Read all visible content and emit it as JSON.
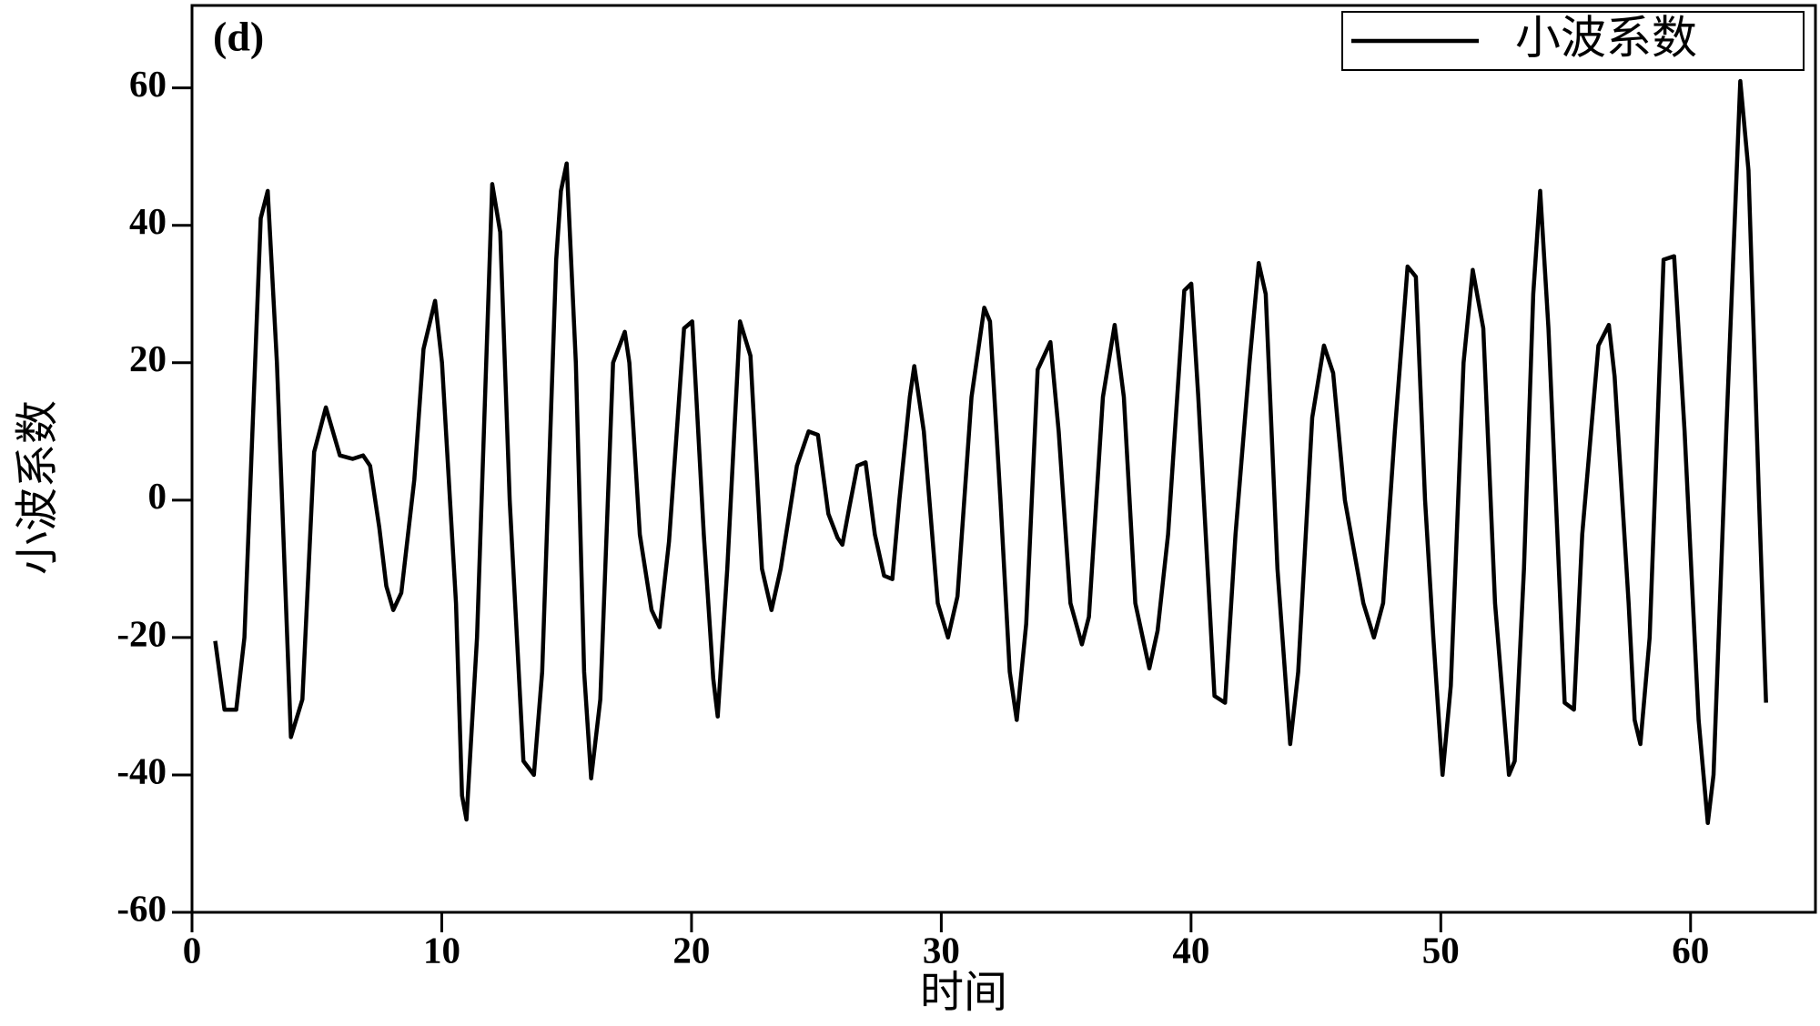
{
  "chart_data": {
    "type": "line",
    "panel_label": "(d)",
    "x_label": "时间",
    "y_label": "小波系数",
    "x": [
      0.93,
      1.3,
      1.77,
      2.1,
      2.75,
      3.03,
      3.4,
      3.96,
      4.42,
      4.89,
      5.36,
      5.92,
      6.43,
      6.85,
      7.13,
      7.5,
      7.78,
      8.06,
      8.38,
      8.9,
      9.27,
      9.73,
      10.01,
      10.57,
      10.81,
      10.99,
      11.41,
      11.78,
      12.02,
      12.34,
      12.72,
      13.27,
      13.69,
      14.02,
      14.58,
      14.77,
      15.0,
      15.37,
      15.7,
      15.98,
      16.35,
      16.86,
      17.33,
      17.51,
      17.93,
      18.4,
      18.72,
      19.1,
      19.7,
      20.03,
      20.49,
      20.87,
      21.05,
      21.43,
      21.94,
      22.36,
      22.82,
      23.2,
      23.57,
      24.22,
      24.69,
      25.06,
      25.48,
      25.85,
      26.04,
      26.32,
      26.64,
      26.97,
      27.34,
      27.71,
      28.04,
      28.32,
      28.74,
      28.92,
      29.3,
      29.86,
      30.27,
      30.65,
      31.21,
      31.72,
      31.95,
      32.37,
      32.74,
      33.02,
      33.4,
      33.86,
      34.37,
      34.7,
      35.17,
      35.63,
      35.91,
      36.47,
      36.94,
      37.31,
      37.77,
      38.33,
      38.66,
      39.08,
      39.73,
      40.01,
      40.29,
      40.94,
      41.36,
      41.78,
      42.34,
      42.71,
      42.99,
      43.46,
      43.97,
      44.29,
      44.85,
      45.32,
      45.69,
      46.16,
      46.9,
      47.32,
      47.69,
      48.16,
      48.67,
      49.0,
      49.37,
      49.7,
      50.07,
      50.4,
      50.91,
      51.28,
      51.7,
      52.17,
      52.73,
      52.96,
      53.33,
      53.7,
      53.98,
      54.31,
      54.96,
      55.33,
      55.66,
      56.31,
      56.73,
      56.96,
      57.52,
      57.76,
      57.99,
      58.36,
      58.92,
      59.34,
      59.76,
      60.32,
      60.69,
      60.92,
      61.43,
      61.76,
      61.99,
      62.32,
      62.74,
      63.02
    ],
    "series": [
      {
        "name": "小波系数",
        "color": "#000000",
        "values": [
          -20.5,
          -30.5,
          -30.5,
          -20,
          41,
          45,
          20,
          -34.5,
          -29,
          7,
          13.5,
          6.5,
          6,
          6.5,
          5,
          -4,
          -12.5,
          -16,
          -13.5,
          3,
          22,
          29,
          20,
          -15,
          -43,
          -46.5,
          -20,
          20,
          46,
          39,
          0,
          -38,
          -40,
          -25,
          35,
          45,
          49,
          20,
          -25,
          -40.5,
          -29,
          20,
          24.5,
          20,
          -5,
          -16,
          -18.5,
          -6,
          25,
          26,
          -5,
          -26,
          -31.5,
          -10,
          26,
          21,
          -10,
          -16,
          -10,
          5,
          10,
          9.5,
          -2,
          -5.5,
          -6.5,
          -1,
          5,
          5.5,
          -5,
          -11,
          -11.5,
          0,
          15,
          19.5,
          10,
          -15,
          -20,
          -14,
          15,
          28,
          26,
          0,
          -25,
          -32,
          -18,
          19,
          23,
          10,
          -15,
          -21,
          -17,
          15,
          25.5,
          15,
          -15,
          -24.5,
          -19,
          -5,
          30.5,
          31.5,
          15,
          -28.5,
          -29.5,
          -5,
          20,
          34.5,
          30,
          -10,
          -35.5,
          -25,
          12,
          22.5,
          18.5,
          0,
          -15,
          -20,
          -15,
          10,
          34,
          32.5,
          0,
          -20,
          -40,
          -27,
          20,
          33.5,
          25,
          -15,
          -40,
          -38,
          -10,
          30,
          45,
          25,
          -29.5,
          -30.5,
          -5,
          22.5,
          25.5,
          18,
          -15,
          -32,
          -35.5,
          -20,
          35,
          35.5,
          10,
          -32,
          -47,
          -40,
          10,
          40,
          61,
          48,
          0,
          -29.5
        ]
      }
    ],
    "xlim": [
      0,
      65
    ],
    "xticks": [
      0,
      10,
      20,
      30,
      40,
      50,
      60
    ],
    "ylim": [
      -60,
      72
    ],
    "yticks": [
      -60,
      -40,
      -20,
      0,
      20,
      40,
      60
    ],
    "legend": "upper right"
  }
}
